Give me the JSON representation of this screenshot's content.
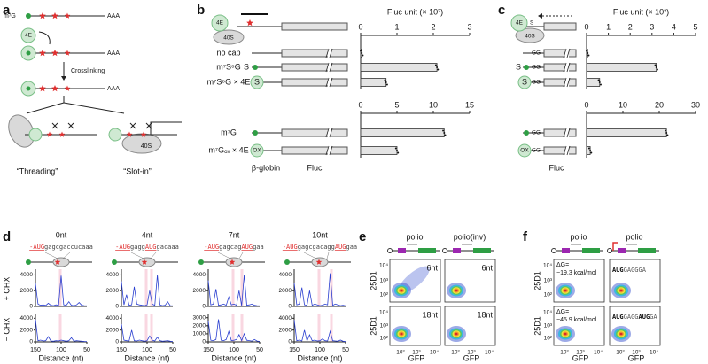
{
  "figure": {
    "letters": [
      "a",
      "b",
      "c",
      "d",
      "e",
      "f"
    ],
    "a": {
      "cap": "m⁷G",
      "tail": "AAA",
      "factor": "4E",
      "step": "Crosslinking",
      "ribosome": "40S",
      "modes": [
        "“Threading”",
        "“Slot-in”"
      ]
    },
    "b": {
      "factor": "4E",
      "ribosome": "40S",
      "genes": [
        "β-globin",
        "Fluc"
      ],
      "thio": "S",
      "ox": "OX"
    },
    "c": {
      "factor": "4E",
      "ribosome": "40S",
      "gene": "Fluc",
      "spacer": "GG",
      "thio": "S",
      "ox": "OX"
    },
    "d": {
      "conditions": [
        "+ CHX",
        "− CHX"
      ],
      "columns": [
        {
          "title": "0nt",
          "seq": [
            "-AUG",
            "gagcgaccucaaa"
          ]
        },
        {
          "title": "4nt",
          "seq": [
            "-AUG",
            "gagg",
            "AUG",
            "gacaaa"
          ]
        },
        {
          "title": "7nt",
          "seq": [
            "-AUG",
            "gagcag",
            "AUG",
            "gaa"
          ]
        },
        {
          "title": "10nt",
          "seq": [
            "-AUG",
            "gagcgacagg",
            "AUG",
            "gaa"
          ]
        }
      ]
    },
    "e": {
      "constructs": [
        "polio",
        "polio(inv)"
      ],
      "spacers": [
        "6nt",
        "18nt"
      ],
      "ylabel": "25D1",
      "xlabel": "GFP",
      "yticks": [
        "10⁴",
        "10³",
        "10²"
      ],
      "xticks": [
        "10²",
        "10³",
        "10⁴"
      ]
    },
    "f": {
      "constructs": [
        "polio",
        "polio"
      ],
      "dG": [
        [
          "ΔG=",
          "−19.3 kcal/mol"
        ],
        [
          "ΔG=",
          "−45.9 kcal/mol"
        ]
      ],
      "seqs": [
        [
          "AUG",
          "GAGGGA"
        ],
        [
          "AUG",
          "GAGG",
          "AUG",
          "GA"
        ]
      ],
      "ylabel": "25D1",
      "xlabel": "GFP",
      "yticks": [
        "10⁴",
        "10³",
        "10²"
      ],
      "xticks": [
        "10²",
        "10³",
        "10⁴"
      ]
    }
  },
  "chart_data": [
    {
      "type": "bar",
      "orientation": "horizontal",
      "xlabel": "Fluc unit (× 10³)",
      "categories": [
        "no cap",
        "m⁷S⁶G",
        "m⁷S⁶G × 4E"
      ],
      "values": [
        0.03,
        2.1,
        0.7
      ],
      "xlim": [
        0,
        3
      ],
      "xticks": [
        0,
        1,
        2,
        3
      ],
      "color": "#e4e4e4"
    },
    {
      "type": "bar",
      "orientation": "horizontal",
      "categories": [
        "m⁷G",
        "m⁷Gₒₓ × 4E"
      ],
      "values": [
        11.5,
        5.0
      ],
      "xlim": [
        0,
        15
      ],
      "xticks": [
        0,
        5,
        10,
        15
      ],
      "color": "#e4e4e4"
    },
    {
      "type": "bar",
      "orientation": "horizontal",
      "xlabel": "Fluc unit (× 10²)",
      "categories": [
        null,
        null,
        null
      ],
      "values": [
        0.05,
        3.2,
        0.6
      ],
      "xlim": [
        0,
        5
      ],
      "xticks": [
        0,
        1,
        2,
        3,
        4,
        5
      ],
      "color": "#e4e4e4"
    },
    {
      "type": "bar",
      "orientation": "horizontal",
      "categories": [
        null,
        null
      ],
      "values": [
        22,
        1.0
      ],
      "xlim": [
        0,
        30
      ],
      "xticks": [
        0,
        10,
        20,
        30
      ],
      "color": "#e4e4e4"
    },
    {
      "type": "line",
      "color": "#2a3fd0",
      "x": [
        150,
        145,
        140,
        135,
        130,
        125,
        120,
        115,
        110,
        105,
        100,
        95,
        90,
        85,
        80,
        75,
        70,
        65,
        60,
        55,
        50
      ],
      "values": [
        2900,
        300,
        150,
        200,
        120,
        400,
        150,
        100,
        200,
        150,
        3900,
        200,
        150,
        600,
        150,
        100,
        200,
        500,
        150,
        100,
        80
      ],
      "xlim": [
        150,
        50
      ],
      "ylim": [
        0,
        4500
      ],
      "yticks": [
        0,
        2000,
        4000
      ]
    },
    {
      "type": "line",
      "color": "#2a3fd0",
      "x": [
        150,
        145,
        140,
        135,
        130,
        125,
        120,
        115,
        110,
        105,
        100,
        95,
        90,
        85,
        80,
        75,
        70,
        65,
        60,
        55,
        50
      ],
      "values": [
        3200,
        200,
        1500,
        150,
        200,
        2500,
        300,
        200,
        150,
        100,
        200,
        2000,
        300,
        150,
        4000,
        200,
        100,
        150,
        600,
        100,
        80
      ],
      "xlim": [
        150,
        50
      ],
      "ylim": [
        0,
        4500
      ],
      "yticks": [
        0,
        2000,
        4000
      ]
    },
    {
      "type": "line",
      "color": "#2a3fd0",
      "x": [
        150,
        145,
        140,
        135,
        130,
        125,
        120,
        115,
        110,
        105,
        100,
        95,
        90,
        85,
        80,
        75,
        70,
        65,
        60,
        55,
        50
      ],
      "values": [
        3300,
        200,
        300,
        2200,
        150,
        200,
        300,
        150,
        1200,
        200,
        300,
        150,
        2000,
        100,
        4000,
        150,
        200,
        300,
        150,
        100,
        80
      ],
      "xlim": [
        150,
        50
      ],
      "ylim": [
        0,
        4500
      ],
      "yticks": [
        0,
        2000,
        4000
      ]
    },
    {
      "type": "line",
      "color": "#2a3fd0",
      "x": [
        150,
        145,
        140,
        135,
        130,
        125,
        120,
        115,
        110,
        105,
        100,
        95,
        90,
        85,
        80,
        75,
        70,
        65,
        60,
        55,
        50
      ],
      "values": [
        3000,
        200,
        300,
        2400,
        200,
        150,
        2000,
        150,
        300,
        200,
        100,
        150,
        300,
        200,
        4200,
        150,
        300,
        200,
        100,
        150,
        80
      ],
      "xlim": [
        150,
        50
      ],
      "ylim": [
        0,
        4500
      ],
      "yticks": [
        0,
        2000,
        4000
      ]
    },
    {
      "type": "line",
      "color": "#2a3fd0",
      "xlabel": "Distance (nt)",
      "x": [
        150,
        145,
        140,
        135,
        130,
        125,
        120,
        115,
        110,
        105,
        100,
        95,
        90,
        85,
        80,
        75,
        70,
        65,
        60,
        55,
        50
      ],
      "values": [
        3800,
        200,
        300,
        150,
        200,
        900,
        150,
        100,
        200,
        150,
        300,
        200,
        100,
        200,
        700,
        100,
        200,
        150,
        100,
        80,
        60
      ],
      "xlim": [
        150,
        50
      ],
      "xticks": [
        150,
        100,
        50
      ],
      "ylim": [
        0,
        4500
      ],
      "yticks": [
        0,
        2000,
        4000
      ]
    },
    {
      "type": "line",
      "color": "#2a3fd0",
      "xlabel": "Distance (nt)",
      "x": [
        150,
        145,
        140,
        135,
        130,
        125,
        120,
        115,
        110,
        105,
        100,
        95,
        90,
        85,
        80,
        75,
        70,
        65,
        60,
        55,
        50
      ],
      "values": [
        3000,
        300,
        200,
        150,
        2000,
        200,
        150,
        300,
        200,
        100,
        200,
        1000,
        300,
        150,
        800,
        200,
        100,
        150,
        200,
        100,
        60
      ],
      "xlim": [
        150,
        50
      ],
      "xticks": [
        150,
        100,
        50
      ],
      "ylim": [
        0,
        4500
      ],
      "yticks": [
        0,
        2000,
        4000
      ]
    },
    {
      "type": "line",
      "color": "#2a3fd0",
      "xlabel": "Distance (nt)",
      "x": [
        150,
        145,
        140,
        135,
        130,
        125,
        120,
        115,
        110,
        105,
        100,
        95,
        90,
        85,
        80,
        75,
        70,
        65,
        60,
        55,
        50
      ],
      "values": [
        2600,
        200,
        150,
        300,
        2800,
        200,
        150,
        300,
        1300,
        150,
        200,
        300,
        900,
        150,
        1000,
        200,
        150,
        100,
        300,
        100,
        60
      ],
      "xlim": [
        150,
        50
      ],
      "xticks": [
        150,
        100,
        50
      ],
      "ylim": [
        0,
        3300
      ],
      "yticks": [
        0,
        1000,
        2000,
        3000
      ]
    },
    {
      "type": "line",
      "color": "#2a3fd0",
      "xlabel": "Distance (nt)",
      "x": [
        150,
        145,
        140,
        135,
        130,
        125,
        120,
        115,
        110,
        105,
        100,
        95,
        90,
        85,
        80,
        75,
        70,
        65,
        60,
        55,
        50
      ],
      "values": [
        3700,
        200,
        300,
        150,
        2000,
        150,
        1200,
        200,
        300,
        150,
        200,
        500,
        200,
        150,
        1800,
        200,
        150,
        100,
        300,
        100,
        60
      ],
      "xlim": [
        150,
        50
      ],
      "xticks": [
        150,
        100,
        50
      ],
      "ylim": [
        0,
        4500
      ],
      "yticks": [
        0,
        2000,
        4000
      ]
    }
  ]
}
